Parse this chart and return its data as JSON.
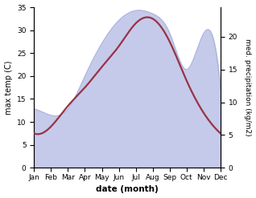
{
  "months": [
    "Jan",
    "Feb",
    "Mar",
    "Apr",
    "May",
    "Jun",
    "Jul",
    "Aug",
    "Sep",
    "Oct",
    "Nov",
    "Dec"
  ],
  "temp": [
    7.5,
    9.0,
    13.5,
    17.5,
    22.0,
    26.5,
    31.5,
    32.5,
    27.5,
    19.0,
    12.0,
    7.5
  ],
  "precip": [
    9.0,
    8.0,
    9.0,
    14.0,
    19.0,
    22.5,
    24.0,
    23.5,
    20.5,
    15.0,
    20.5,
    12.0
  ],
  "temp_color": "#993344",
  "precip_fill_color": "#c5caeb",
  "precip_line_color": "#aab4dd",
  "temp_ylim": [
    0,
    35
  ],
  "precip_ylim": [
    0,
    24.5
  ],
  "temp_yticks": [
    0,
    5,
    10,
    15,
    20,
    25,
    30,
    35
  ],
  "precip_yticks": [
    0,
    5,
    10,
    15,
    20
  ],
  "xlabel": "date (month)",
  "ylabel_left": "max temp (C)",
  "ylabel_right": "med. precipitation (kg/m2)",
  "bg_color": "#ffffff",
  "line_width": 1.6,
  "label_fontsize": 7.0,
  "tick_fontsize": 6.5,
  "xlabel_fontsize": 7.5
}
